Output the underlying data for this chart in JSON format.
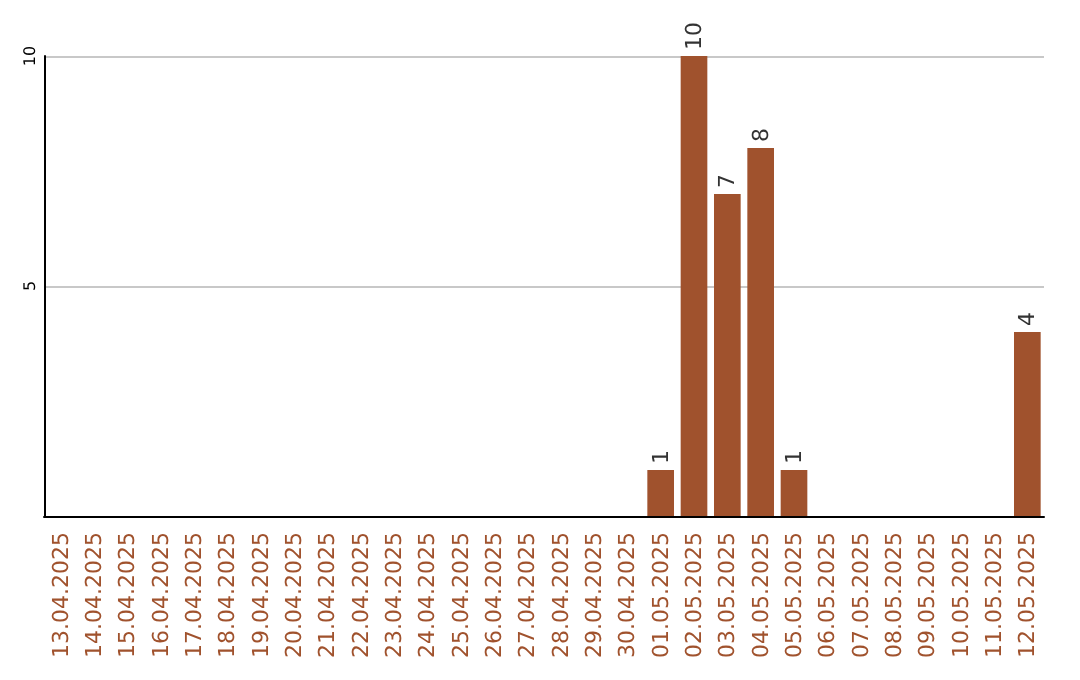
{
  "chart_data": {
    "type": "bar",
    "categories": [
      "13.04.2025",
      "14.04.2025",
      "15.04.2025",
      "16.04.2025",
      "17.04.2025",
      "18.04.2025",
      "19.04.2025",
      "20.04.2025",
      "21.04.2025",
      "22.04.2025",
      "23.04.2025",
      "24.04.2025",
      "25.04.2025",
      "26.04.2025",
      "27.04.2025",
      "28.04.2025",
      "29.04.2025",
      "30.04.2025",
      "01.05.2025",
      "02.05.2025",
      "03.05.2025",
      "04.05.2025",
      "05.05.2025",
      "06.05.2025",
      "07.05.2025",
      "08.05.2025",
      "09.05.2025",
      "10.05.2025",
      "11.05.2025",
      "12.05.2025"
    ],
    "values": [
      0,
      0,
      0,
      0,
      0,
      0,
      0,
      0,
      0,
      0,
      0,
      0,
      0,
      0,
      0,
      0,
      0,
      0,
      1,
      10,
      7,
      8,
      1,
      0,
      0,
      0,
      0,
      0,
      0,
      4
    ],
    "value_labels": [
      null,
      null,
      null,
      null,
      null,
      null,
      null,
      null,
      null,
      null,
      null,
      null,
      null,
      null,
      null,
      null,
      null,
      null,
      "1",
      "10",
      "7",
      "8",
      "1",
      null,
      null,
      null,
      null,
      null,
      null,
      "4"
    ],
    "color": "#a0522d",
    "ylim": [
      0,
      10
    ],
    "yticks": [
      5,
      10
    ],
    "grid": "y"
  }
}
